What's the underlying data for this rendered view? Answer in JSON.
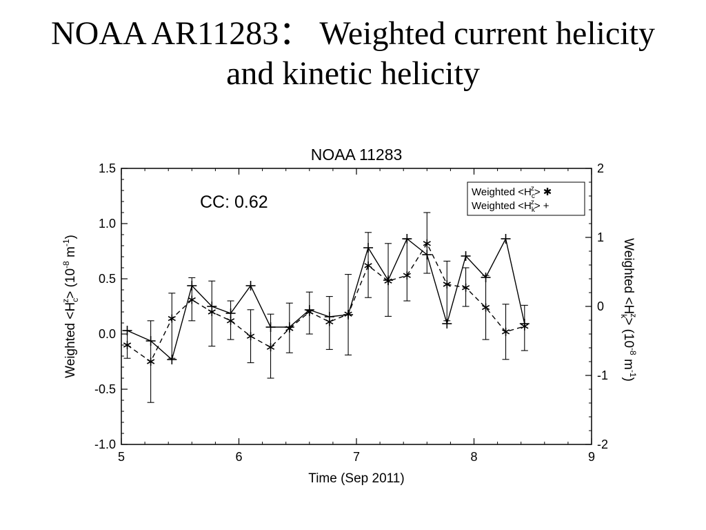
{
  "slide": {
    "title_line1": "NOAA AR11283：  Weighted current helicity",
    "title_line2": "and kinetic helicity"
  },
  "chart_data": {
    "type": "line",
    "title": "NOAA 11283",
    "annotation": "CC: 0.62",
    "xlabel": "Time (Sep 2011)",
    "ylabel_left": "Weighted <H",
    "ylabel_left_sub": "c",
    "ylabel_left_sup": "z",
    "ylabel_left_unit": "> (10",
    "ylabel_left_exp": "-8",
    "ylabel_left_tail": " m",
    "ylabel_left_tail_exp": "-1",
    "ylabel_left_close": ")",
    "ylabel_right": "Weighted <H",
    "ylabel_right_sub": "k",
    "ylabel_right_sup": "z",
    "ylabel_right_unit": "> (10",
    "ylabel_right_exp": "-8",
    "ylabel_right_tail": " m",
    "ylabel_right_tail_exp": "-1",
    "ylabel_right_close": ")",
    "xlim": [
      5,
      9
    ],
    "ylim_left": [
      -1.0,
      1.5
    ],
    "ylim_right": [
      -2,
      2
    ],
    "xticks": [
      5,
      6,
      7,
      8,
      9
    ],
    "xtick_labels": [
      "5",
      "6",
      "7",
      "8",
      "9"
    ],
    "yticks_left": [
      -1.0,
      -0.5,
      0.0,
      0.5,
      1.0,
      1.5
    ],
    "ytick_labels_left": [
      "-1.0",
      "-0.5",
      "0.0",
      "0.5",
      "1.0",
      "1.5"
    ],
    "yticks_right": [
      -2,
      -1,
      0,
      1,
      2
    ],
    "ytick_labels_right": [
      "-2",
      "-1",
      "0",
      "1",
      "2"
    ],
    "grid": false,
    "legend_position": "top-right",
    "series": [
      {
        "name": "Weighted <H",
        "legend_sub": "c",
        "legend_sup": "z",
        "legend_close": "> ✱",
        "axis": "left",
        "marker": "asterisk",
        "line_style": "dashed",
        "x": [
          5.05,
          5.25,
          5.43,
          5.6,
          5.77,
          5.93,
          6.1,
          6.27,
          6.43,
          6.6,
          6.77,
          6.93,
          7.1,
          7.27,
          7.43,
          7.6,
          7.77,
          7.93,
          8.1,
          8.27,
          8.43
        ],
        "y": [
          -0.1,
          -0.25,
          0.14,
          0.31,
          0.2,
          0.12,
          -0.02,
          -0.12,
          0.05,
          0.2,
          0.11,
          0.18,
          0.62,
          0.48,
          0.53,
          0.82,
          0.45,
          0.42,
          0.24,
          0.02,
          0.07
        ],
        "err_low": [
          -0.22,
          -0.62,
          -0.22,
          0.12,
          -0.11,
          -0.05,
          -0.26,
          -0.4,
          -0.17,
          0.0,
          -0.14,
          -0.19,
          0.33,
          0.16,
          0.3,
          0.55,
          0.12,
          0.25,
          -0.05,
          -0.23,
          -0.15
        ],
        "err_high": [
          0.03,
          0.12,
          0.37,
          0.51,
          0.48,
          0.3,
          0.22,
          0.18,
          0.28,
          0.38,
          0.34,
          0.54,
          0.92,
          0.82,
          0.86,
          1.1,
          0.66,
          0.6,
          0.53,
          0.27,
          0.26
        ]
      },
      {
        "name": "Weighted <H",
        "legend_sub": "k",
        "legend_sup": "z",
        "legend_close": "> +",
        "axis": "right",
        "marker": "plus",
        "line_style": "solid",
        "x": [
          5.05,
          5.25,
          5.43,
          5.6,
          5.77,
          5.93,
          6.1,
          6.27,
          6.43,
          6.6,
          6.77,
          6.93,
          7.1,
          7.27,
          7.43,
          7.6,
          7.77,
          7.93,
          8.1,
          8.27,
          8.43
        ],
        "y": [
          -0.35,
          -0.5,
          -0.77,
          0.3,
          0.0,
          -0.1,
          0.3,
          -0.3,
          -0.3,
          -0.05,
          -0.15,
          -0.12,
          0.85,
          0.38,
          0.98,
          0.75,
          -0.25,
          0.73,
          0.42,
          0.98,
          -0.25
        ]
      }
    ]
  }
}
